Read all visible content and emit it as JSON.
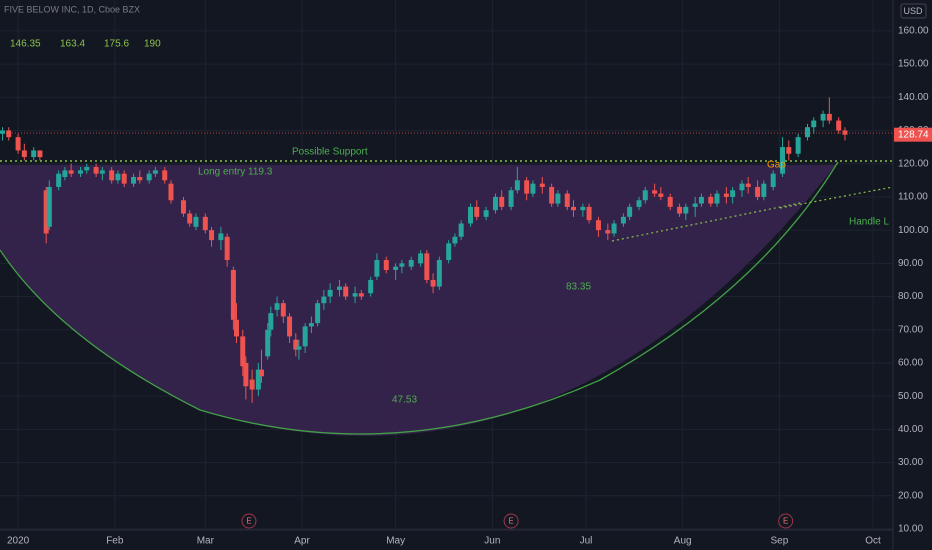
{
  "chart_data": {
    "type": "candlestick",
    "title": "FIVE BELOW INC, 1D, Cboe BZX",
    "currency": "USD",
    "legend_values": [
      146.35,
      163.4,
      175.6,
      190
    ],
    "annotations": [
      "Possible Support",
      "Long entry 119.3",
      "Gap",
      "Handle L",
      "83.35",
      "47.53"
    ],
    "up_color": "#26a69a",
    "down_color": "#ef5350",
    "grid": true,
    "earnings": [
      {
        "x": 75,
        "label": "E"
      },
      {
        "x": 159,
        "label": "E"
      },
      {
        "x": 247,
        "label": "E"
      }
    ],
    "x": [
      -4,
      -2,
      1,
      3,
      6,
      8,
      10,
      11,
      14,
      16,
      18,
      21,
      23,
      26,
      28,
      31,
      33,
      35,
      38,
      40,
      43,
      45,
      48,
      50,
      54,
      56,
      58,
      61,
      63,
      66,
      68,
      70,
      71,
      73,
      74,
      76,
      78,
      79,
      81,
      82,
      84,
      86,
      88,
      90,
      91,
      93,
      95,
      97,
      99,
      101,
      104,
      106,
      109,
      111,
      114,
      116,
      119,
      122,
      124,
      127,
      130,
      132,
      134,
      136,
      139,
      141,
      143,
      146,
      148,
      151,
      154,
      156,
      159,
      161,
      164,
      166,
      169,
      172,
      174,
      177,
      179,
      182,
      184,
      187,
      190,
      192,
      195,
      197,
      200,
      202,
      205,
      207,
      210,
      213,
      215,
      218,
      220,
      223,
      225,
      228,
      230,
      233,
      235,
      238,
      240,
      243,
      246,
      248,
      251,
      254,
      256,
      259,
      261,
      264,
      266
    ],
    "open": [
      129,
      130,
      128,
      124,
      122,
      124,
      112,
      101,
      113,
      116,
      118,
      117,
      118,
      119,
      117,
      118,
      115,
      117,
      114,
      116,
      115,
      117,
      118,
      114,
      109,
      105,
      101,
      104,
      100,
      97,
      98,
      88,
      73,
      68,
      60,
      55,
      52,
      58,
      62,
      70,
      76,
      78,
      74,
      67,
      64,
      65,
      71,
      72,
      78,
      80,
      82,
      83,
      80,
      81,
      81,
      86,
      91,
      88,
      89,
      89,
      90,
      93,
      85,
      83,
      91,
      96,
      98,
      102,
      107,
      104,
      106,
      110,
      107,
      112,
      115,
      111,
      114,
      113,
      108,
      111,
      107,
      106,
      107,
      103,
      100,
      99,
      102,
      104,
      107,
      109,
      112,
      111,
      110,
      107,
      105,
      107,
      108,
      110,
      108,
      111,
      110,
      112,
      114,
      113,
      110,
      113,
      117,
      125,
      123,
      128,
      131,
      133,
      135,
      133,
      130
    ],
    "high": [
      131,
      131,
      129,
      126,
      125,
      124,
      113,
      115,
      118,
      119,
      120,
      119,
      120,
      120,
      119,
      119,
      118,
      118,
      117,
      118,
      118,
      119,
      119,
      115,
      110,
      106,
      105,
      105,
      101,
      101,
      99,
      89,
      78,
      70,
      62,
      58,
      60,
      64,
      72,
      77,
      80,
      79,
      75,
      69,
      67,
      72,
      74,
      79,
      82,
      84,
      85,
      84,
      83,
      82,
      86,
      93,
      92,
      90,
      91,
      92,
      94,
      94,
      87,
      92,
      97,
      99,
      103,
      108,
      109,
      107,
      111,
      112,
      113,
      119,
      116,
      115,
      116,
      114,
      112,
      112,
      109,
      108,
      108,
      104,
      102,
      103,
      105,
      108,
      110,
      113,
      114,
      113,
      111,
      108,
      108,
      110,
      111,
      111,
      112,
      113,
      113,
      115,
      116,
      115,
      115,
      118,
      128,
      127,
      129,
      132,
      134,
      136,
      140,
      134,
      131
    ],
    "low": [
      127,
      127,
      123,
      121,
      121,
      121,
      96,
      100,
      112,
      115,
      116,
      116,
      117,
      116,
      115,
      114,
      114,
      113,
      113,
      114,
      114,
      116,
      114,
      108,
      104,
      101,
      100,
      99,
      95,
      94,
      89,
      70,
      66,
      56,
      49,
      48,
      50,
      54,
      61,
      68,
      74,
      72,
      66,
      62,
      61,
      63,
      69,
      71,
      76,
      78,
      80,
      79,
      78,
      79,
      80,
      85,
      87,
      85,
      87,
      88,
      89,
      84,
      81,
      82,
      90,
      95,
      97,
      101,
      103,
      103,
      105,
      106,
      106,
      111,
      109,
      110,
      111,
      107,
      107,
      106,
      104,
      104,
      102,
      98,
      97,
      98,
      101,
      103,
      106,
      108,
      110,
      109,
      106,
      104,
      103,
      104,
      107,
      107,
      107,
      108,
      108,
      110,
      111,
      109,
      109,
      112,
      116,
      121,
      122,
      127,
      129,
      131,
      132,
      129,
      127
    ],
    "close": [
      130,
      128,
      124,
      122,
      124,
      122,
      99,
      113,
      117,
      118,
      117,
      118,
      119,
      117,
      118,
      115,
      117,
      114,
      116,
      115,
      117,
      118,
      115,
      109,
      105,
      102,
      104,
      100,
      97,
      99,
      91,
      73,
      68,
      59,
      53,
      52,
      58,
      56,
      70,
      75,
      78,
      74,
      68,
      64,
      65,
      71,
      72,
      78,
      80,
      82,
      83,
      80,
      81,
      80,
      85,
      91,
      88,
      89,
      90,
      91,
      93,
      85,
      83,
      91,
      96,
      98,
      102,
      107,
      104,
      106,
      110,
      107,
      112,
      115,
      111,
      114,
      113,
      108,
      111,
      107,
      106,
      107,
      103,
      100,
      99,
      102,
      104,
      107,
      109,
      112,
      111,
      110,
      107,
      105,
      107,
      108,
      110,
      108,
      111,
      110,
      112,
      114,
      113,
      110,
      114,
      117,
      125,
      123,
      128,
      131,
      133,
      135,
      133,
      130,
      128.74
    ],
    "xlim": [
      -4.8,
      281.4
    ],
    "xticks": [
      {
        "value": 1,
        "label": "2020"
      },
      {
        "value": 32,
        "label": "Feb"
      },
      {
        "value": 61,
        "label": "Mar"
      },
      {
        "value": 92,
        "label": "Apr"
      },
      {
        "value": 122,
        "label": "May"
      },
      {
        "value": 153,
        "label": "Jun"
      },
      {
        "value": 183,
        "label": "Jul"
      },
      {
        "value": 214,
        "label": "Aug"
      },
      {
        "value": 245,
        "label": "Sep"
      },
      {
        "value": 275,
        "label": "Oct"
      }
    ],
    "ylim": [
      9.7,
      169.3
    ],
    "yticks": [
      {
        "value": 10,
        "label": "10.00"
      },
      {
        "value": 20,
        "label": "20.00"
      },
      {
        "value": 30,
        "label": "30.00"
      },
      {
        "value": 40,
        "label": "40.00"
      },
      {
        "value": 50,
        "label": "50.00"
      },
      {
        "value": 60,
        "label": "60.00"
      },
      {
        "value": 70,
        "label": "70.00"
      },
      {
        "value": 80,
        "label": "80.00"
      },
      {
        "value": 90,
        "label": "90.00"
      },
      {
        "value": 100,
        "label": "100.00"
      },
      {
        "value": 110,
        "label": "110.00"
      },
      {
        "value": 120,
        "label": "120.00"
      },
      {
        "value": 130,
        "label": "130.00"
      },
      {
        "value": 140,
        "label": "140.00"
      },
      {
        "value": 150,
        "label": "150.00"
      },
      {
        "value": 160,
        "label": "160.00"
      }
    ]
  }
}
